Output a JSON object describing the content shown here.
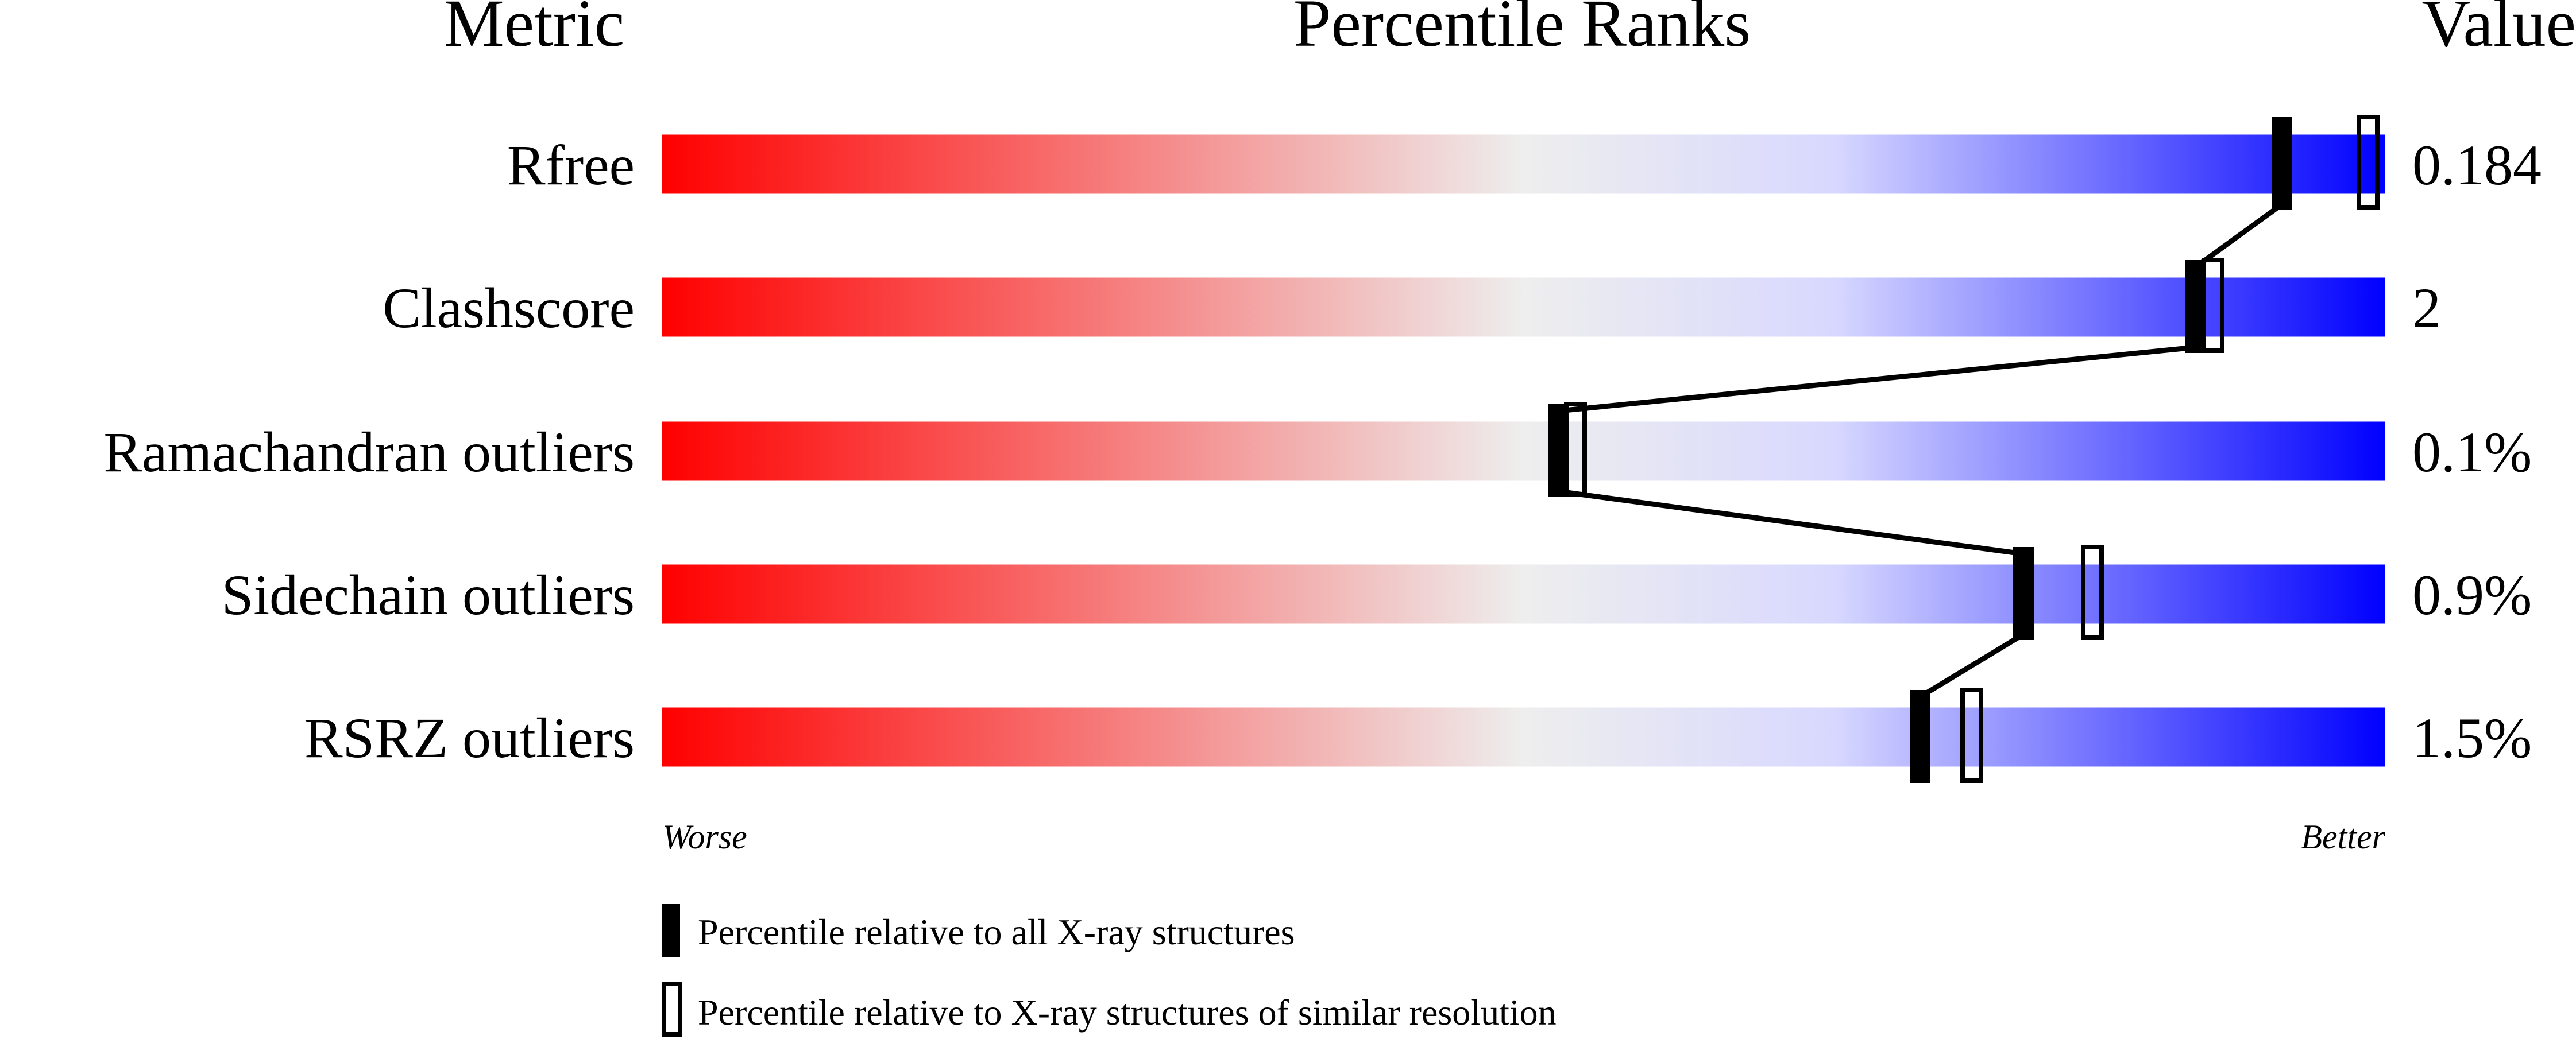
{
  "chart_data": {
    "type": "percentile-bar",
    "headers": {
      "metric": "Metric",
      "ranks": "Percentile Ranks",
      "value": "Value"
    },
    "xlim": [
      0,
      100
    ],
    "axis_labels": {
      "left": "Worse",
      "right": "Better"
    },
    "colors": {
      "worse": "#ff0000",
      "middle": "#eeeeee",
      "light_blue": "#d8d8ff",
      "better": "#0000ff",
      "marker": "#000000"
    },
    "metrics": [
      {
        "name": "Rfree",
        "value": "0.184",
        "percentile_all": 94,
        "percentile_similar": 99
      },
      {
        "name": "Clashscore",
        "value": "2",
        "percentile_all": 89,
        "percentile_similar": 90
      },
      {
        "name": "Ramachandran outliers",
        "value": "0.1%",
        "percentile_all": 52,
        "percentile_similar": 53
      },
      {
        "name": "Sidechain outliers",
        "value": "0.9%",
        "percentile_all": 79,
        "percentile_similar": 83
      },
      {
        "name": "RSRZ outliers",
        "value": "1.5%",
        "percentile_all": 73,
        "percentile_similar": 76
      }
    ],
    "legend": [
      {
        "marker": "filled",
        "label": "Percentile relative to all X-ray structures"
      },
      {
        "marker": "hollow",
        "label": "Percentile relative to X-ray structures of similar resolution"
      }
    ]
  }
}
